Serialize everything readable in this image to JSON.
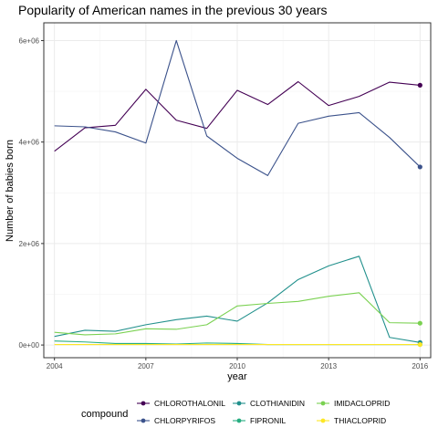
{
  "chart_data": {
    "type": "line",
    "title": "Popularity of American names in the previous 30 years",
    "xlabel": "year",
    "ylabel": "Number of babies born",
    "x": [
      2004,
      2005,
      2006,
      2007,
      2008,
      2009,
      2010,
      2011,
      2012,
      2013,
      2014,
      2015,
      2016
    ],
    "xlim": [
      2003.65,
      2016.35
    ],
    "ylim": [
      -250000,
      6350000
    ],
    "x_ticks": [
      2004,
      2007,
      2010,
      2013,
      2016
    ],
    "x_tick_labels": [
      "2004",
      "2007",
      "2010",
      "2013",
      "2016"
    ],
    "y_ticks": [
      0,
      2000000,
      4000000,
      6000000
    ],
    "y_tick_labels": [
      "0e+00",
      "2e+06",
      "4e+06",
      "6e+06"
    ],
    "grid": true,
    "legend_title": "compound",
    "legend_position": "bottom",
    "series": [
      {
        "name": "CHLOROTHALONIL",
        "color": "#440154",
        "values": [
          3820000,
          4280000,
          4330000,
          5040000,
          4430000,
          4270000,
          5020000,
          4740000,
          5190000,
          4720000,
          4900000,
          5180000,
          5120000
        ]
      },
      {
        "name": "CHLORPYRIFOS",
        "color": "#3b528b",
        "values": [
          4320000,
          4300000,
          4200000,
          3980000,
          6000000,
          4120000,
          3680000,
          3340000,
          4370000,
          4510000,
          4580000,
          4090000,
          3510000
        ]
      },
      {
        "name": "CLOTHIANIDIN",
        "color": "#21908c",
        "values": [
          170000,
          290000,
          270000,
          400000,
          500000,
          570000,
          470000,
          830000,
          1290000,
          1560000,
          1750000,
          150000,
          50000
        ]
      },
      {
        "name": "FIPRONIL",
        "color": "#27ad81",
        "values": [
          80000,
          60000,
          30000,
          30000,
          20000,
          40000,
          30000,
          10000,
          10000,
          10000,
          10000,
          10000,
          10000
        ]
      },
      {
        "name": "IMIDACLOPRID",
        "color": "#7ad151",
        "values": [
          250000,
          200000,
          220000,
          320000,
          310000,
          400000,
          770000,
          820000,
          860000,
          960000,
          1030000,
          440000,
          430000
        ]
      },
      {
        "name": "THIACLOPRID",
        "color": "#fde725",
        "values": [
          10000,
          10000,
          10000,
          10000,
          10000,
          10000,
          10000,
          10000,
          10000,
          10000,
          10000,
          10000,
          10000
        ]
      }
    ],
    "legend_rows": [
      [
        "CHLOROTHALONIL",
        "CLOTHIANIDIN",
        "IMIDACLOPRID"
      ],
      [
        "CHLORPYRIFOS",
        "FIPRONIL",
        "THIACLOPRID"
      ]
    ]
  }
}
